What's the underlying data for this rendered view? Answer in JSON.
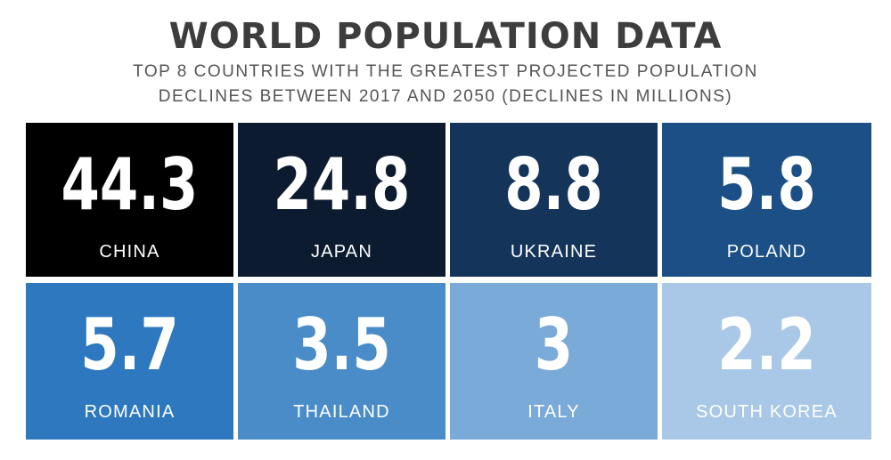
{
  "header": {
    "title": "WORLD POPULATION DATA",
    "subtitle_line1": "TOP 8 COUNTRIES WITH THE GREATEST PROJECTED POPULATION",
    "subtitle_line2": "DECLINES BETWEEN 2017 AND 2050 (DECLINES IN MILLIONS)"
  },
  "chart_data": {
    "type": "table",
    "title": "WORLD POPULATION DATA",
    "subtitle": "TOP 8 COUNTRIES WITH THE GREATEST PROJECTED POPULATION DECLINES BETWEEN 2017 AND 2050 (DECLINES IN MILLIONS)",
    "categories": [
      "CHINA",
      "JAPAN",
      "UKRAINE",
      "POLAND",
      "ROMANIA",
      "THAILAND",
      "ITALY",
      "SOUTH KOREA"
    ],
    "values": [
      44.3,
      24.8,
      8.8,
      5.8,
      5.7,
      3.5,
      3,
      2.2
    ],
    "value_labels": [
      "44.3",
      "24.8",
      "8.8",
      "5.8",
      "5.7",
      "3.5",
      "3",
      "2.2"
    ],
    "tile_colors": [
      "#000000",
      "#0c1b2f",
      "#15345a",
      "#1b4f85",
      "#2d78be",
      "#4a8cc7",
      "#7aaad8",
      "#a9c7e6"
    ]
  }
}
